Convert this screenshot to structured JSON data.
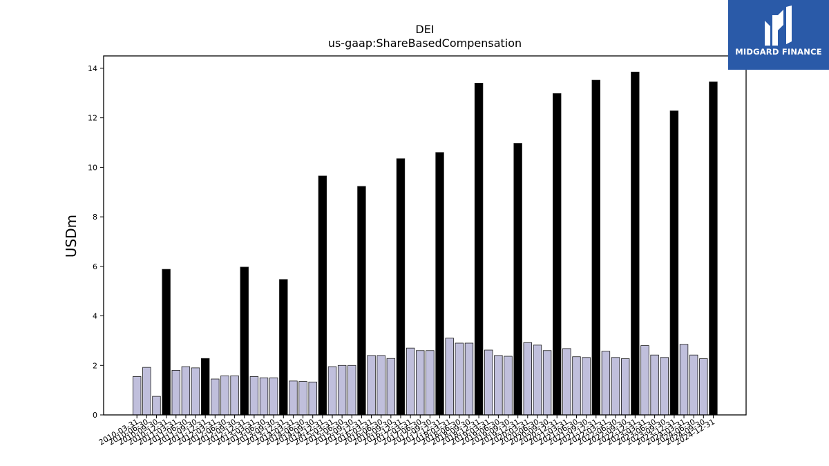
{
  "brand": {
    "name": "MIDGARD FINANCE",
    "logo_icon": "midgard-m-logo-icon",
    "bg_color": "#2a5aa8"
  },
  "chart_data": {
    "type": "bar",
    "title": "DEI",
    "subtitle": "us-gaap:ShareBasedCompensation",
    "xlabel": "",
    "ylabel": "USDm",
    "ylim": [
      0,
      14.5
    ],
    "yticks": [
      0,
      2,
      4,
      6,
      8,
      10,
      12,
      14
    ],
    "grid": false,
    "colors": {
      "quarter": "#c0bfdc",
      "annual": "#000000",
      "edge": "#1a1a1a"
    },
    "categories": [
      "2010-03-31",
      "2010-06-30",
      "2010-09-30",
      "2010-12-31",
      "2011-03-31",
      "2011-06-30",
      "2011-09-30",
      "2011-12-31",
      "2012-03-31",
      "2012-06-30",
      "2012-09-30",
      "2012-12-31",
      "2013-03-31",
      "2013-06-30",
      "2013-09-30",
      "2013-12-31",
      "2014-03-31",
      "2014-06-30",
      "2014-09-30",
      "2014-12-31",
      "2015-03-31",
      "2015-06-30",
      "2015-09-30",
      "2015-12-31",
      "2016-03-31",
      "2016-06-30",
      "2016-09-30",
      "2016-12-31",
      "2017-03-31",
      "2017-06-30",
      "2017-09-30",
      "2017-12-31",
      "2018-03-31",
      "2018-06-30",
      "2018-09-30",
      "2018-12-31",
      "2019-03-31",
      "2019-06-30",
      "2019-09-30",
      "2019-12-31",
      "2020-03-31",
      "2020-06-30",
      "2020-09-30",
      "2020-12-31",
      "2021-03-31",
      "2021-06-30",
      "2021-09-30",
      "2021-12-31",
      "2022-03-31",
      "2022-06-30",
      "2022-09-30",
      "2022-12-31",
      "2023-03-31",
      "2023-06-30",
      "2023-09-30",
      "2023-12-31",
      "2024-03-31",
      "2024-06-30",
      "2024-09-30",
      "2024-12-31"
    ],
    "values": [
      1.55,
      1.92,
      0.75,
      5.88,
      1.8,
      1.95,
      1.9,
      2.28,
      1.45,
      1.58,
      1.58,
      5.97,
      1.55,
      1.5,
      1.5,
      5.47,
      1.37,
      1.35,
      1.33,
      9.65,
      1.95,
      2.0,
      2.0,
      9.23,
      2.4,
      2.4,
      2.28,
      10.35,
      2.7,
      2.6,
      2.6,
      10.6,
      3.1,
      2.9,
      2.9,
      13.4,
      2.62,
      2.4,
      2.37,
      10.97,
      2.92,
      2.82,
      2.6,
      12.98,
      2.68,
      2.35,
      2.32,
      13.52,
      2.57,
      2.32,
      2.27,
      13.85,
      2.8,
      2.42,
      2.32,
      12.28,
      2.85,
      2.42,
      2.27,
      13.45
    ],
    "annual_flags": [
      false,
      false,
      false,
      true,
      false,
      false,
      false,
      true,
      false,
      false,
      false,
      true,
      false,
      false,
      false,
      true,
      false,
      false,
      false,
      true,
      false,
      false,
      false,
      true,
      false,
      false,
      false,
      true,
      false,
      false,
      false,
      true,
      false,
      false,
      false,
      true,
      false,
      false,
      false,
      true,
      false,
      false,
      false,
      true,
      false,
      false,
      false,
      true,
      false,
      false,
      false,
      true,
      false,
      false,
      false,
      true,
      false,
      false,
      false,
      true
    ]
  }
}
